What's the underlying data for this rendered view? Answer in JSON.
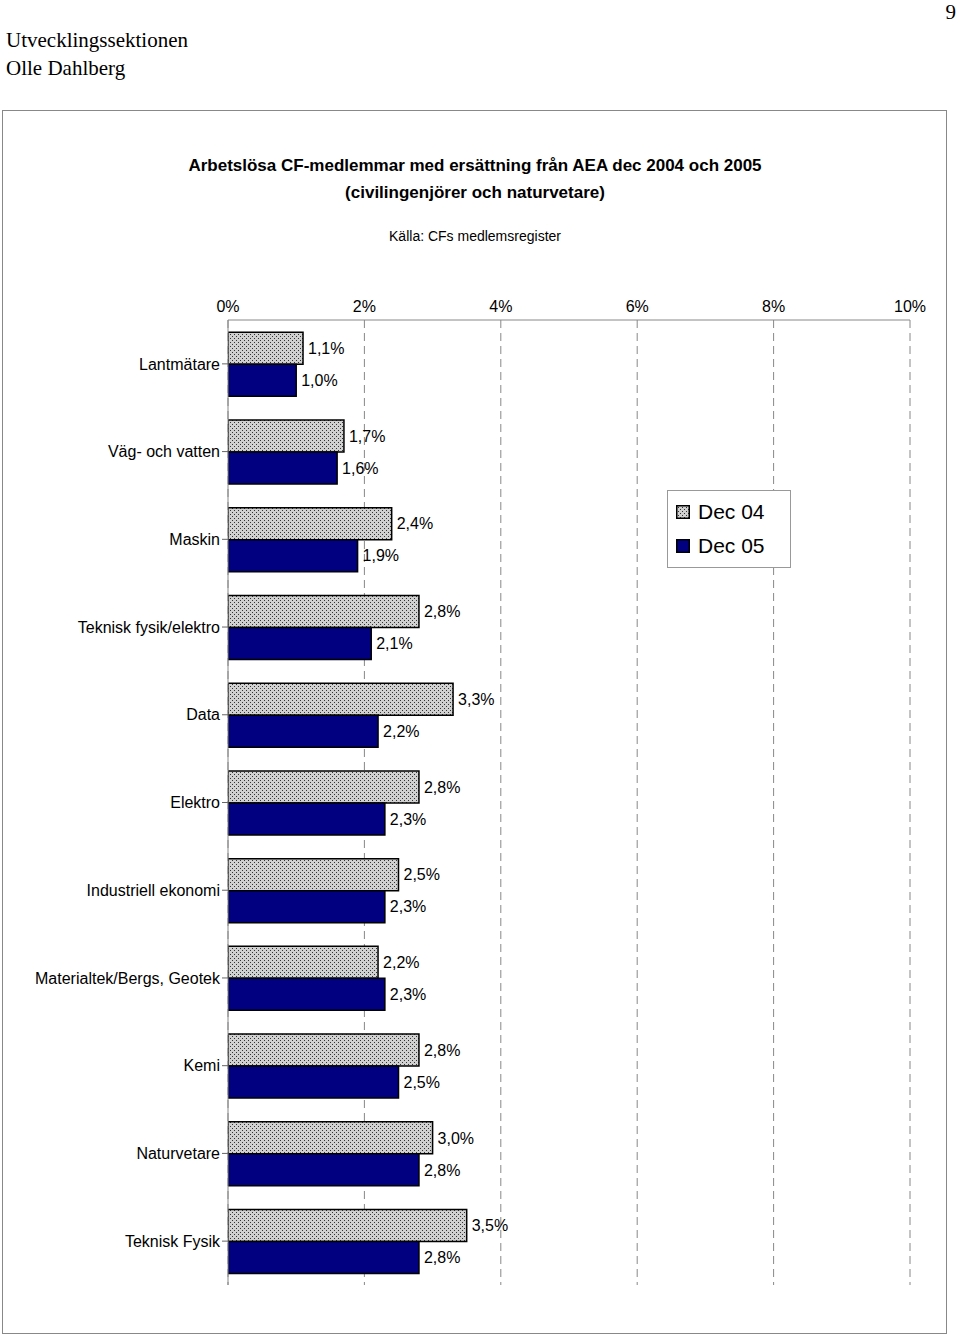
{
  "page": {
    "header": [
      "Utvecklingssektionen",
      "Olle Dahlberg"
    ],
    "page_number": 9
  },
  "chart_data": {
    "type": "bar",
    "orientation": "horizontal",
    "title": "Arbetslösa CF-medlemmar med ersättning från AEA dec 2004 och 2005",
    "subtitle": "(civilingenjörer och naturvetare)",
    "annotations": [
      "Källa: CFs medlemsregister"
    ],
    "categories": [
      "Lantmätare",
      "Väg- och vatten",
      "Maskin",
      "Teknisk fysik/elektro",
      "Data",
      "Elektro",
      "Industriell ekonomi",
      "Materialtek/Bergs, Geotek",
      "Kemi",
      "Naturvetare",
      "Teknisk Fysik"
    ],
    "series": [
      {
        "name": "Dec 04",
        "color": "#d0d0d0",
        "values": [
          1.1,
          1.7,
          2.4,
          2.8,
          3.3,
          2.8,
          2.5,
          2.2,
          2.8,
          3.0,
          3.5
        ],
        "value_labels": [
          "1,1%",
          "1,7%",
          "2,4%",
          "2,8%",
          "3,3%",
          "2,8%",
          "2,5%",
          "2,2%",
          "2,8%",
          "3,0%",
          "3,5%"
        ]
      },
      {
        "name": "Dec 05",
        "color": "#000080",
        "values": [
          1.0,
          1.6,
          1.9,
          2.1,
          2.2,
          2.3,
          2.3,
          2.3,
          2.5,
          2.8,
          2.8
        ],
        "value_labels": [
          "1,0%",
          "1,6%",
          "1,9%",
          "2,1%",
          "2,2%",
          "2,3%",
          "2,3%",
          "2,3%",
          "2,5%",
          "2,8%",
          "2,8%"
        ]
      }
    ],
    "xlim": [
      0,
      10
    ],
    "xticks": [
      {
        "value": 0,
        "label": "0%"
      },
      {
        "value": 2,
        "label": "2%"
      },
      {
        "value": 4,
        "label": "4%"
      },
      {
        "value": 6,
        "label": "6%"
      },
      {
        "value": 8,
        "label": "8%"
      },
      {
        "value": 10,
        "label": "10%"
      }
    ],
    "grid": true,
    "legend": "right",
    "data_labels": true
  }
}
